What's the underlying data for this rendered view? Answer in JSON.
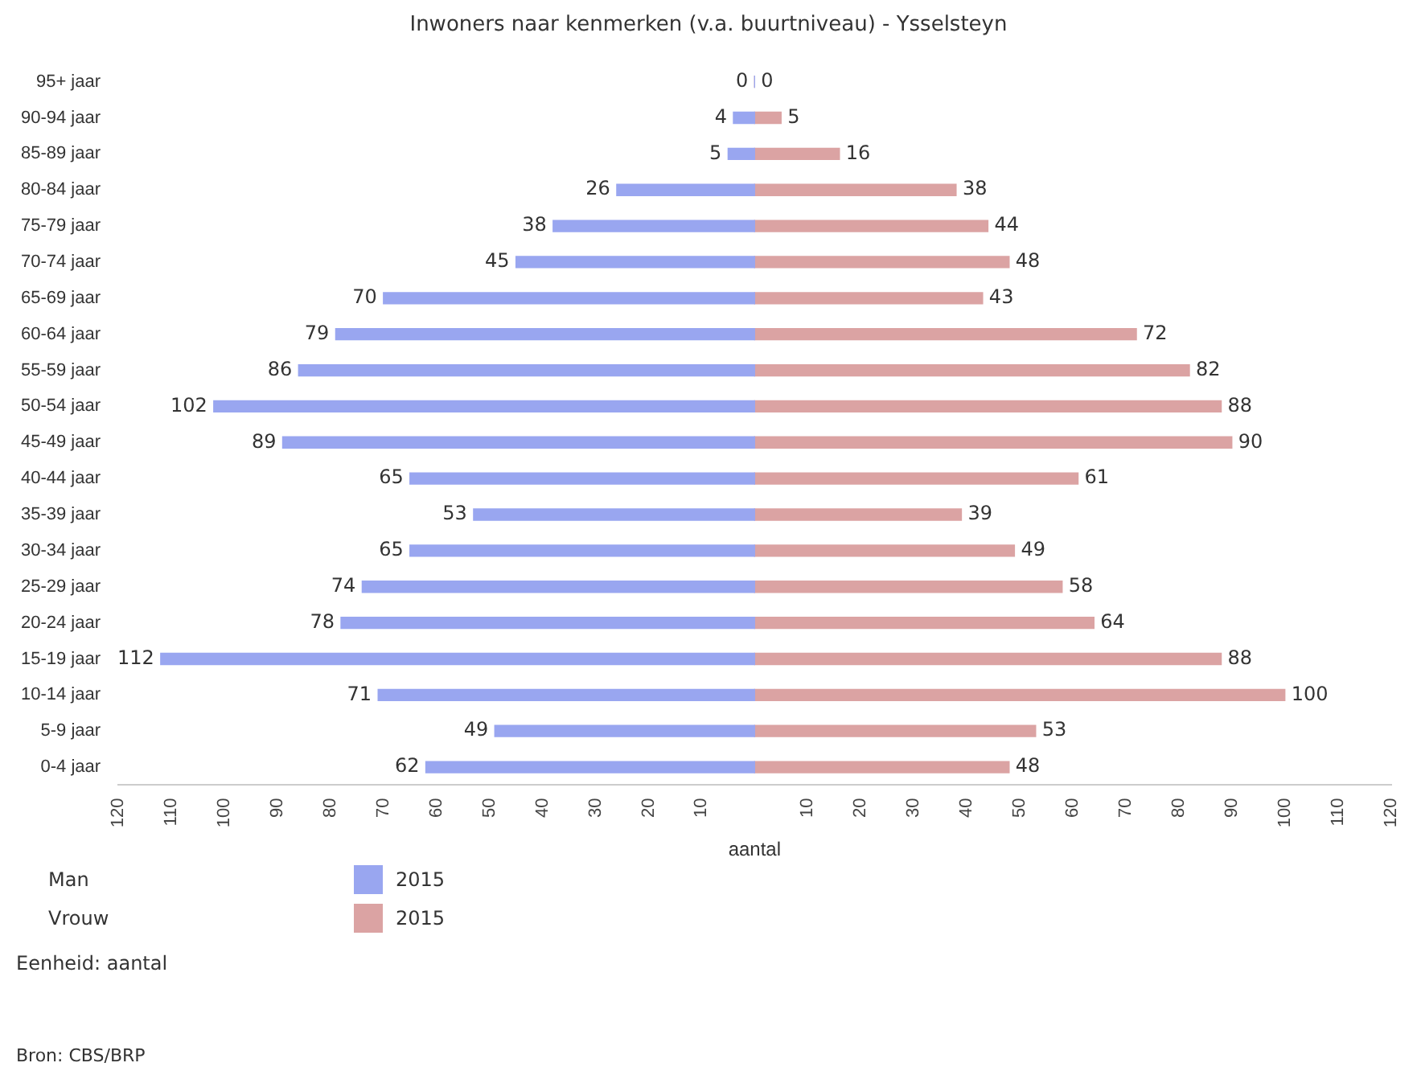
{
  "chart_data": {
    "type": "bar",
    "orientation": "horizontal",
    "title": "Inwoners naar kenmerken (v.a. buurtniveau) - Ysselsteyn",
    "xlabel": "aantal",
    "categories": [
      "95+ jaar",
      "90-94 jaar",
      "85-89 jaar",
      "80-84 jaar",
      "75-79 jaar",
      "70-74 jaar",
      "65-69 jaar",
      "60-64 jaar",
      "55-59 jaar",
      "50-54 jaar",
      "45-49 jaar",
      "40-44 jaar",
      "35-39 jaar",
      "30-34 jaar",
      "25-29 jaar",
      "20-24 jaar",
      "15-19 jaar",
      "10-14 jaar",
      "5-9 jaar",
      "0-4 jaar"
    ],
    "series": [
      {
        "name": "2015",
        "color": "#99a6f0",
        "values": [
          0,
          4,
          5,
          26,
          38,
          45,
          70,
          79,
          86,
          102,
          89,
          65,
          53,
          65,
          74,
          78,
          112,
          71,
          49,
          62
        ],
        "base": [
          0,
          -4,
          -5,
          -26,
          -38,
          -45,
          -70,
          -79,
          -86,
          -102,
          -89,
          -65,
          -53,
          -65,
          -74,
          -78,
          -112,
          -71,
          -49,
          -62
        ],
        "value_labels": [
          "0",
          "4",
          "5",
          "26",
          "38",
          "45",
          "70",
          "79",
          "86",
          "102",
          "89",
          "65",
          "53",
          "65",
          "74",
          "78",
          "112",
          "71",
          "49",
          "62"
        ]
      },
      {
        "name": "2015",
        "color": "#dba3a3",
        "values": [
          0,
          5,
          16,
          38,
          44,
          48,
          43,
          72,
          82,
          88,
          90,
          61,
          39,
          49,
          58,
          64,
          88,
          100,
          53,
          48
        ],
        "value_labels": [
          "0",
          "5",
          "16",
          "38",
          "44",
          "48",
          "43",
          "72",
          "82",
          "88",
          "90",
          "61",
          "39",
          "49",
          "58",
          "64",
          "88",
          "100",
          "53",
          "48"
        ]
      }
    ],
    "legend_title": null,
    "annotations": [
      "Man",
      "Vrouw",
      "Eenheid: aantal",
      "Bron: CBS/BRP"
    ],
    "xlim": [
      -120,
      120
    ],
    "xticks": [
      {
        "value": -120,
        "label": "120"
      },
      {
        "value": -110,
        "label": "110"
      },
      {
        "value": -100,
        "label": "100"
      },
      {
        "value": -90,
        "label": "90"
      },
      {
        "value": -80,
        "label": "80"
      },
      {
        "value": -70,
        "label": "70"
      },
      {
        "value": -60,
        "label": "60"
      },
      {
        "value": -50,
        "label": "50"
      },
      {
        "value": -40,
        "label": "40"
      },
      {
        "value": -30,
        "label": "30"
      },
      {
        "value": -20,
        "label": "20"
      },
      {
        "value": -10,
        "label": "10"
      },
      {
        "value": 0,
        "label": null
      },
      10,
      20,
      30,
      40,
      50,
      60,
      70,
      80,
      90,
      100,
      110,
      120
    ],
    "grid": false,
    "legend": "bottom left"
  }
}
